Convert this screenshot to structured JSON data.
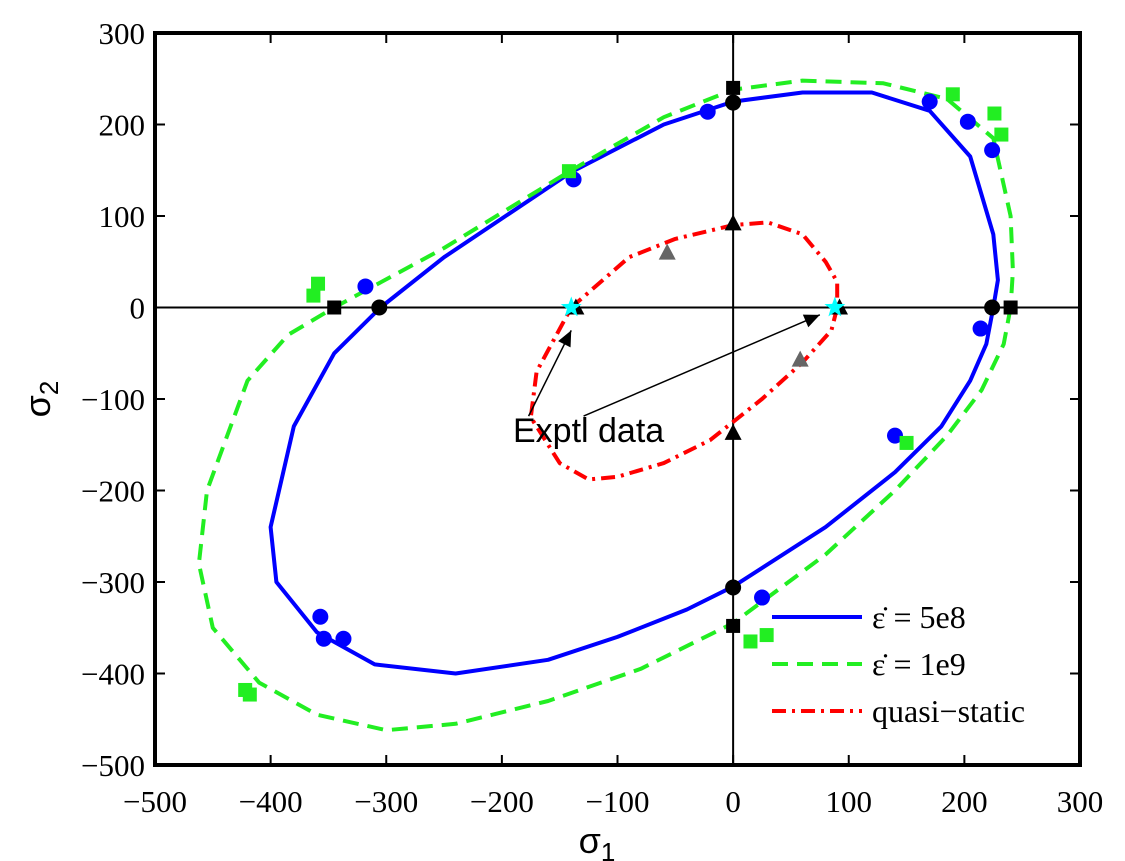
{
  "chart_data": {
    "type": "line",
    "xlabel": "σ",
    "xlabel_sub": "1",
    "ylabel": "σ",
    "ylabel_sub": "2",
    "xlim": [
      -500,
      300
    ],
    "ylim": [
      -500,
      300
    ],
    "xticks": [
      -500,
      -400,
      -300,
      -200,
      -100,
      0,
      100,
      200,
      300
    ],
    "yticks": [
      -500,
      -400,
      -300,
      -200,
      -100,
      0,
      100,
      200,
      300
    ],
    "xtick_labels": [
      "−500",
      "−400",
      "−300",
      "−200",
      "−100",
      "0",
      "100",
      "200",
      "300"
    ],
    "ytick_labels": [
      "−500",
      "−400",
      "−300",
      "−200",
      "−100",
      "0",
      "100",
      "200",
      "300"
    ],
    "grid": false,
    "legend_position": "bottom-right",
    "series": [
      {
        "name": "ε̇ = 5e8",
        "style": "solid",
        "color": "#0000FF",
        "x": [
          225,
          219,
          205,
          180,
          140,
          80,
          0,
          -40,
          -100,
          -160,
          -240,
          -310,
          -360,
          -395,
          -400,
          -380,
          -345,
          -305,
          -250,
          -140,
          -60,
          0,
          60,
          120,
          170,
          205,
          225,
          229,
          225
        ],
        "y": [
          0,
          -40,
          -80,
          -130,
          -180,
          -240,
          -305,
          -330,
          -360,
          -385,
          -400,
          -390,
          -355,
          -300,
          -240,
          -130,
          -50,
          0,
          55,
          148,
          200,
          225,
          235,
          235,
          215,
          165,
          80,
          30,
          0
        ],
        "markers": {
          "shape": "circle",
          "color": "#0000FF",
          "x": [
            -22,
            -138,
            170,
            203,
            224,
            -318,
            214,
            140,
            25,
            -357,
            -354,
            -337
          ],
          "y": [
            214,
            140,
            225,
            203,
            172,
            23,
            -23,
            -140,
            -317,
            -338,
            -362,
            -362
          ]
        }
      },
      {
        "name": "ε̇ = 1e9",
        "style": "dashed",
        "color": "#22EE22",
        "x": [
          240,
          234,
          215,
          185,
          140,
          80,
          0,
          -80,
          -160,
          -240,
          -300,
          -360,
          -410,
          -450,
          -462,
          -455,
          -420,
          -385,
          -345,
          -250,
          -140,
          -60,
          0,
          60,
          130,
          185,
          225,
          240,
          242,
          240
        ],
        "y": [
          0,
          -40,
          -90,
          -140,
          -200,
          -270,
          -345,
          -395,
          -430,
          -455,
          -462,
          -445,
          -410,
          -350,
          -280,
          -200,
          -80,
          -30,
          0,
          65,
          150,
          208,
          238,
          248,
          245,
          228,
          185,
          100,
          40,
          0
        ],
        "markers": {
          "shape": "square",
          "color": "#22EE22",
          "x": [
            -142,
            190,
            226,
            232,
            -359,
            -363,
            150,
            15,
            29,
            -422,
            -418
          ],
          "y": [
            149,
            233,
            212,
            189,
            26,
            13,
            -148,
            -365,
            -358,
            -418,
            -423
          ]
        }
      },
      {
        "name": "quasi−static",
        "style": "dashdot",
        "color": "#FF0000",
        "x": [
          90,
          85,
          60,
          25,
          -20,
          -60,
          -100,
          -125,
          -150,
          -175,
          -170,
          -140,
          -90,
          -50,
          0,
          30,
          60,
          80,
          90,
          90
        ],
        "y": [
          0,
          -25,
          -60,
          -100,
          -145,
          -170,
          -185,
          -188,
          -170,
          -120,
          -70,
          0,
          55,
          75,
          90,
          93,
          80,
          50,
          28,
          0
        ],
        "markers": {
          "shape": "triangle",
          "color": "#666666",
          "x": [
            -57,
            58
          ],
          "y": [
            60,
            -57
          ]
        }
      }
    ],
    "axis_points": {
      "black_circles": {
        "x": [
          -306,
          224,
          0,
          0
        ],
        "y": [
          0,
          0,
          224,
          -306
        ]
      },
      "black_squares": {
        "x": [
          -345,
          240,
          0,
          0
        ],
        "y": [
          0,
          0,
          240,
          -348
        ]
      },
      "black_triangles": {
        "x": [
          -136,
          92,
          0,
          0
        ],
        "y": [
          0,
          0,
          92,
          -137
        ]
      }
    },
    "experimental_data": {
      "shape": "star",
      "color": "#00FFFF",
      "x": [
        -140,
        88
      ],
      "y": [
        0,
        0
      ]
    },
    "annotations": [
      {
        "text": "Exptl data",
        "x": -125,
        "y": -134,
        "arrows_to": [
          [
            -140,
            -25
          ],
          [
            75,
            -8
          ]
        ]
      }
    ]
  }
}
